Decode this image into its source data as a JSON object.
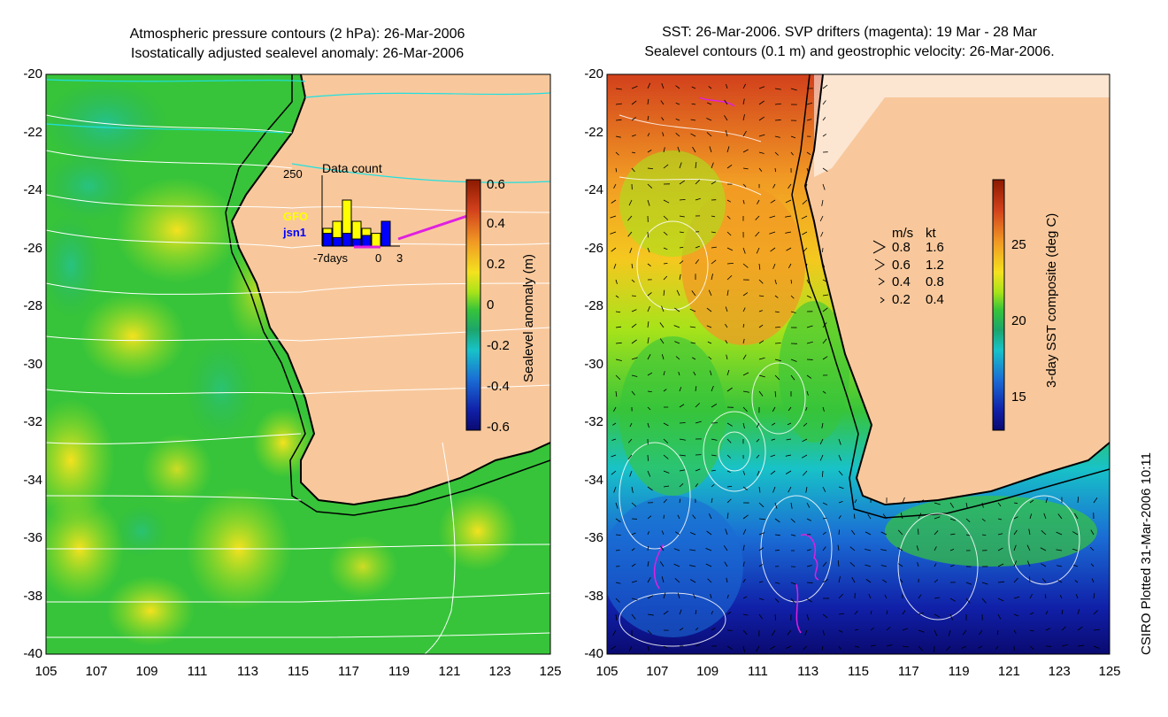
{
  "left_panel": {
    "title_line1": "Atmospheric pressure contours (2 hPa): 26-Mar-2006",
    "title_line2": "Isostatically adjusted sealevel anomaly: 26-Mar-2006",
    "colorbar": {
      "label": "Sealevel anomaly (m)",
      "ticks": [
        "0.6",
        "0.4",
        "0.2",
        "0",
        "-0.2",
        "-0.4",
        "-0.6"
      ],
      "colors": [
        "#8b1a00",
        "#d2401c",
        "#f19a24",
        "#f4e21f",
        "#a7e31a",
        "#37c43a",
        "#1ca56c",
        "#18c2c8",
        "#1a6bd4",
        "#1020a8",
        "#0a0a70"
      ]
    },
    "inset": {
      "title": "Data count",
      "ymax_label": "250",
      "legend": [
        {
          "name": "GFO",
          "color": "#ffff00"
        },
        {
          "name": "jsn1",
          "color": "#0000ff"
        }
      ],
      "x_labels": [
        "-7days",
        "0",
        "3"
      ]
    }
  },
  "right_panel": {
    "title_line1": "SST: 26-Mar-2006. SVP drifters (magenta): 19 Mar - 28 Mar",
    "title_line2": "Sealevel contours (0.1 m) and geostrophic velocity: 26-Mar-2006.",
    "colorbar": {
      "label": "3-day SST composite (deg C)",
      "ticks": [
        "25",
        "20",
        "15"
      ],
      "colors": [
        "#8b1a00",
        "#d2401c",
        "#f19a24",
        "#f4e21f",
        "#a7e31a",
        "#37c43a",
        "#1ca56c",
        "#18c2c8",
        "#1a6bd4",
        "#1020a8",
        "#0a0a70"
      ]
    },
    "velocity_legend": {
      "header_ms": "m/s",
      "header_kt": "kt",
      "rows": [
        {
          "ms": "0.8",
          "kt": "1.6"
        },
        {
          "ms": "0.6",
          "kt": "1.2"
        },
        {
          "ms": "0.4",
          "kt": "0.8"
        },
        {
          "ms": "0.2",
          "kt": "0.4"
        }
      ]
    }
  },
  "axes": {
    "y_ticks": [
      "-20",
      "-22",
      "-24",
      "-26",
      "-28",
      "-30",
      "-32",
      "-34",
      "-36",
      "-38",
      "-40"
    ],
    "x_ticks": [
      "105",
      "107",
      "109",
      "111",
      "113",
      "115",
      "117",
      "119",
      "121",
      "123",
      "125"
    ]
  },
  "credit": "CSIRO Plotted 31-Mar-2006 10:11",
  "colors": {
    "land": "#f8c89c",
    "coast_shelf": "#30d030",
    "contour": "#ffffff",
    "pressure_cyan": "#20e0e0",
    "drifter": "#e020e0"
  }
}
